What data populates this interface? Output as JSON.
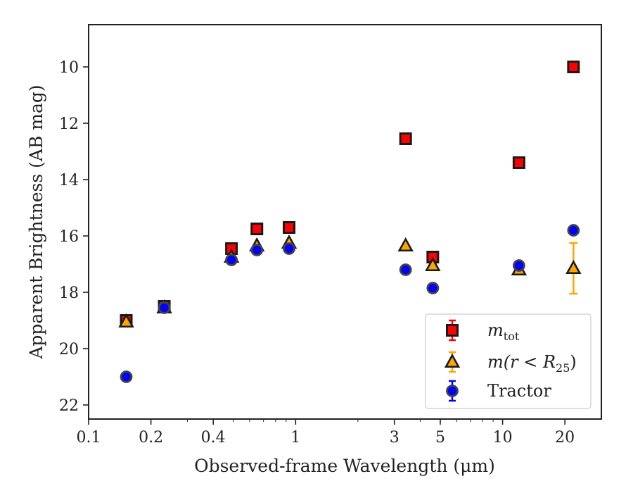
{
  "chart_data": {
    "type": "scatter",
    "xlabel": "Observed-frame Wavelength (μm)",
    "ylabel": "Apparent Brightness (AB mag)",
    "xscale": "log",
    "xlim": [
      0.1,
      30
    ],
    "ylim": [
      22.5,
      8.5
    ],
    "y_inverted": true,
    "x_ticks": [
      0.1,
      0.2,
      0.4,
      1,
      3,
      5,
      10,
      20
    ],
    "x_tick_labels": [
      "0.1",
      "0.2",
      "0.4",
      "1",
      "3",
      "5",
      "10",
      "20"
    ],
    "y_ticks": [
      10,
      12,
      14,
      16,
      18,
      20,
      22
    ],
    "y_tick_labels": [
      "10",
      "12",
      "14",
      "16",
      "18",
      "20",
      "22"
    ],
    "grid": false,
    "legend_position": "lower-right",
    "series": [
      {
        "name": "m_tot",
        "legend_label": {
          "italic": "m",
          "sub": "tot",
          "rest": ""
        },
        "marker": "square",
        "color": "#ff0000",
        "edge_color": "#1a1a1a",
        "error_color": "#ff0000",
        "x": [
          0.152,
          0.232,
          0.49,
          0.65,
          0.93,
          3.4,
          4.6,
          12.0,
          22.0
        ],
        "y": [
          19.0,
          18.5,
          16.45,
          15.75,
          15.7,
          12.55,
          16.75,
          13.4,
          10.0
        ]
      },
      {
        "name": "m(r < R_25)",
        "legend_label": {
          "italic": "m(r < R",
          "sub": "25",
          "rest": ")"
        },
        "marker": "triangle",
        "color": "#ffa500",
        "edge_color": "#1a1a1a",
        "error_color": "#ffa500",
        "x": [
          0.152,
          0.232,
          0.49,
          0.65,
          0.93,
          3.4,
          4.6,
          12.0,
          22.0
        ],
        "y": [
          19.05,
          18.55,
          16.75,
          16.35,
          16.25,
          16.35,
          17.05,
          17.2,
          17.15
        ],
        "yerr": [
          0,
          0,
          0,
          0,
          0,
          0,
          0,
          0,
          0.9
        ]
      },
      {
        "name": "Tractor",
        "legend_label": {
          "italic": "",
          "sub": "",
          "rest": "Tractor"
        },
        "marker": "circle",
        "color": "#0000ff",
        "edge_color": "#444444",
        "error_color": "#0000ff",
        "x": [
          0.152,
          0.232,
          0.49,
          0.65,
          0.93,
          3.4,
          4.6,
          12.0,
          22.0
        ],
        "y": [
          21.0,
          18.55,
          16.85,
          16.5,
          16.45,
          17.2,
          17.85,
          17.05,
          15.8
        ]
      }
    ]
  }
}
